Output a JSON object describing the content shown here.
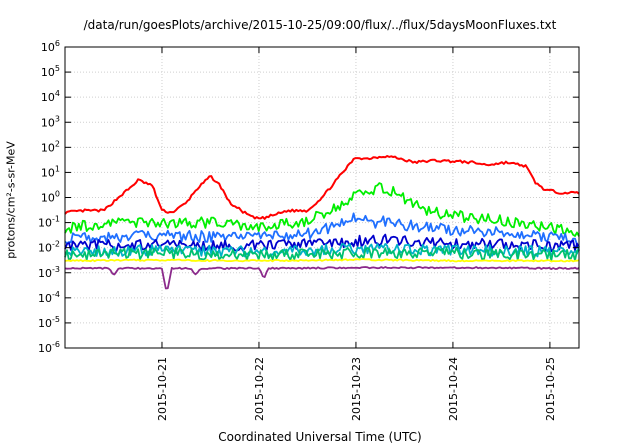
{
  "chart_data": {
    "type": "line",
    "title": "/data/run/goesPlots/archive/2015-10-25/09:00/flux/../flux/5daysMoonFluxes.txt",
    "xlabel": "Coordinated Universal Time (UTC)",
    "ylabel": "protons/cm²-s-sr-MeV",
    "yscale": "log",
    "ylim": [
      1e-06,
      1000000.0
    ],
    "xlim": [
      0,
      5.3
    ],
    "x_origin_label": "2015-10-20 00:00",
    "x_ticks": [
      {
        "x": 1,
        "label": "2015-10-21"
      },
      {
        "x": 2,
        "label": "2015-10-22"
      },
      {
        "x": 3,
        "label": "2015-10-23"
      },
      {
        "x": 4,
        "label": "2015-10-24"
      },
      {
        "x": 5,
        "label": "2015-10-25"
      }
    ],
    "y_ticks": [
      {
        "value": 1e-06,
        "base": "10",
        "exp": "-6"
      },
      {
        "value": 1e-05,
        "base": "10",
        "exp": "-5"
      },
      {
        "value": 0.0001,
        "base": "10",
        "exp": "-4"
      },
      {
        "value": 0.001,
        "base": "10",
        "exp": "-3"
      },
      {
        "value": 0.01,
        "base": "10",
        "exp": "-2"
      },
      {
        "value": 0.1,
        "base": "10",
        "exp": "-1"
      },
      {
        "value": 1,
        "base": "10",
        "exp": "0"
      },
      {
        "value": 10,
        "base": "10",
        "exp": "1"
      },
      {
        "value": 100,
        "base": "10",
        "exp": "2"
      },
      {
        "value": 1000,
        "base": "10",
        "exp": "3"
      },
      {
        "value": 10000,
        "base": "10",
        "exp": "4"
      },
      {
        "value": 100000,
        "base": "10",
        "exp": "5"
      },
      {
        "value": 1000000,
        "base": "10",
        "exp": "6"
      }
    ],
    "grid": true,
    "legend": "none",
    "series": [
      {
        "color": "#ff0000",
        "x": [
          0,
          0.2,
          0.4,
          0.55,
          0.7,
          0.75,
          0.9,
          1.0,
          1.1,
          1.25,
          1.35,
          1.5,
          1.6,
          1.7,
          1.85,
          1.95,
          2.05,
          2.15,
          2.3,
          2.5,
          2.65,
          2.8,
          2.95,
          3.0,
          3.1,
          3.2,
          3.3,
          3.4,
          3.6,
          3.8,
          4.0,
          4.2,
          4.35,
          4.55,
          4.75,
          4.85,
          4.95,
          5.1,
          5.3
        ],
        "y": [
          0.25,
          0.3,
          0.3,
          1,
          3,
          5,
          3,
          0.3,
          0.25,
          0.6,
          2,
          7,
          3,
          0.6,
          0.25,
          0.15,
          0.15,
          0.2,
          0.3,
          0.3,
          1,
          5,
          25,
          40,
          35,
          40,
          45,
          40,
          25,
          30,
          28,
          25,
          20,
          25,
          18,
          4,
          2,
          1.6,
          1.5
        ]
      },
      {
        "color": "#00ee00",
        "x": [
          0,
          0.5,
          1.0,
          1.5,
          2.0,
          2.5,
          2.75,
          2.9,
          3.0,
          3.1,
          3.2,
          3.3,
          3.4,
          3.6,
          3.8,
          4.2,
          4.7,
          5.0,
          5.3
        ],
        "y": [
          0.06,
          0.1,
          0.1,
          0.1,
          0.06,
          0.12,
          0.3,
          0.7,
          1.2,
          1.5,
          2.2,
          2.5,
          1.5,
          0.5,
          0.25,
          0.15,
          0.1,
          0.06,
          0.04
        ]
      },
      {
        "color": "#1f6fff",
        "x": [
          0,
          1.0,
          2.0,
          2.6,
          2.75,
          2.9,
          3.0,
          3.1,
          3.2,
          3.3,
          3.4,
          3.6,
          4.0,
          4.6,
          5.0,
          5.3
        ],
        "y": [
          0.025,
          0.03,
          0.025,
          0.04,
          0.07,
          0.12,
          0.15,
          0.15,
          0.1,
          0.12,
          0.1,
          0.07,
          0.05,
          0.04,
          0.025,
          0.02
        ]
      },
      {
        "color": "#0000cc",
        "x": [
          0,
          1.0,
          2.0,
          2.8,
          3.0,
          3.3,
          3.6,
          4.0,
          5.0,
          5.3
        ],
        "y": [
          0.012,
          0.013,
          0.012,
          0.015,
          0.018,
          0.02,
          0.017,
          0.015,
          0.012,
          0.012
        ]
      },
      {
        "color": "#00b0c8",
        "x": [
          0,
          1.0,
          2.0,
          3.0,
          4.0,
          5.0,
          5.3
        ],
        "y": [
          0.007,
          0.008,
          0.007,
          0.009,
          0.008,
          0.007,
          0.007
        ]
      },
      {
        "color": "#00c070",
        "x": [
          0,
          1.0,
          2.0,
          3.0,
          4.0,
          5.0,
          5.3
        ],
        "y": [
          0.005,
          0.006,
          0.005,
          0.006,
          0.006,
          0.005,
          0.005
        ]
      },
      {
        "color": "#ffff00",
        "x": [
          0,
          1.0,
          2.0,
          3.0,
          4.0,
          5.0,
          5.3
        ],
        "y": [
          0.003,
          0.0032,
          0.003,
          0.0033,
          0.003,
          0.003,
          0.003
        ]
      },
      {
        "color": "#8b2a8b",
        "x": [
          0,
          0.45,
          0.5,
          0.55,
          1.0,
          1.05,
          1.1,
          1.15,
          1.3,
          1.35,
          1.4,
          2.0,
          2.05,
          2.1,
          2.3,
          3.0,
          4.0,
          5.0,
          5.3
        ],
        "y": [
          0.0015,
          0.0015,
          0.0008,
          0.0015,
          0.0015,
          0.00015,
          0.0015,
          0.0015,
          0.0015,
          0.0008,
          0.0015,
          0.0015,
          0.0006,
          0.0015,
          0.0015,
          0.0016,
          0.0016,
          0.0015,
          0.0015
        ]
      }
    ]
  }
}
